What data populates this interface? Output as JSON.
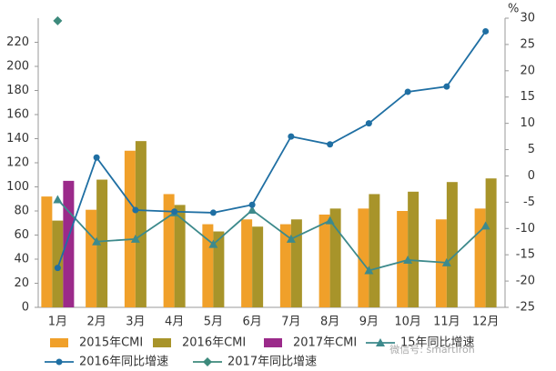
{
  "chart_data": {
    "type": "bar-line",
    "categories": [
      "1月",
      "2月",
      "3月",
      "4月",
      "5月",
      "6月",
      "7月",
      "8月",
      "9月",
      "10月",
      "11月",
      "12月"
    ],
    "y2_label": "%",
    "ylim": [
      0,
      240
    ],
    "yticks": [
      0,
      20,
      40,
      60,
      80,
      100,
      120,
      140,
      160,
      180,
      200,
      220
    ],
    "y2lim": [
      -25,
      30
    ],
    "y2ticks": [
      -25,
      -20,
      -15,
      -10,
      -5,
      0,
      5,
      10,
      15,
      20,
      25,
      30
    ],
    "series": [
      {
        "name": "2015年CMI",
        "kind": "bar",
        "color": "#f0a02a",
        "values": [
          92,
          81,
          130,
          94,
          69,
          73,
          69,
          77,
          82,
          80,
          73,
          82
        ]
      },
      {
        "name": "2016年CMI",
        "kind": "bar",
        "color": "#a8942a",
        "values": [
          72,
          106,
          138,
          85,
          63,
          67,
          73,
          82,
          94,
          96,
          104,
          107
        ]
      },
      {
        "name": "2017年CMI",
        "kind": "bar",
        "color": "#9b2a8a",
        "values": [
          105,
          null,
          null,
          null,
          null,
          null,
          null,
          null,
          null,
          null,
          null,
          null
        ]
      },
      {
        "name": "15年同比增速",
        "kind": "line",
        "marker": "triangle",
        "axis": "y2",
        "color": "#3d8a8c",
        "values": [
          -4.5,
          -12.5,
          -12,
          -7,
          -13,
          -6.5,
          -12,
          -8.5,
          -18,
          -16,
          -16.5,
          -9.5
        ]
      },
      {
        "name": "2016年同比增速",
        "kind": "line",
        "marker": "circle",
        "axis": "y2",
        "color": "#1f6fa3",
        "values": [
          -17.5,
          3.5,
          -6.5,
          -6.8,
          -7,
          -5.5,
          7.5,
          6,
          10,
          16,
          17,
          27.5
        ]
      },
      {
        "name": "2017年同比增速",
        "kind": "line",
        "marker": "diamond",
        "axis": "y2",
        "color": "#3d8a7c",
        "values": [
          29.5,
          null,
          null,
          null,
          null,
          null,
          null,
          null,
          null,
          null,
          null,
          null
        ]
      }
    ],
    "watermark": "微信号: smartIron"
  }
}
